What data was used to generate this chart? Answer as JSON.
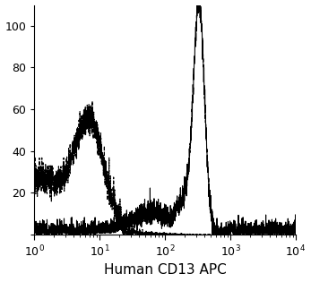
{
  "title": "",
  "xlabel": "Human CD13 APC",
  "ylabel": "",
  "xlim_log": [
    1,
    10000
  ],
  "ylim": [
    0,
    110
  ],
  "yticks": [
    0,
    20,
    40,
    60,
    80,
    100
  ],
  "background_color": "#ffffff",
  "dashed_color": "#000000",
  "solid_color": "#000000",
  "dashed_peak_log_x": 0.85,
  "dashed_peak_y": 47,
  "dashed_base_y": 27,
  "solid_peak_log_x": 2.52,
  "solid_peak_y": 108,
  "xlabel_fontsize": 11,
  "tick_fontsize": 9
}
